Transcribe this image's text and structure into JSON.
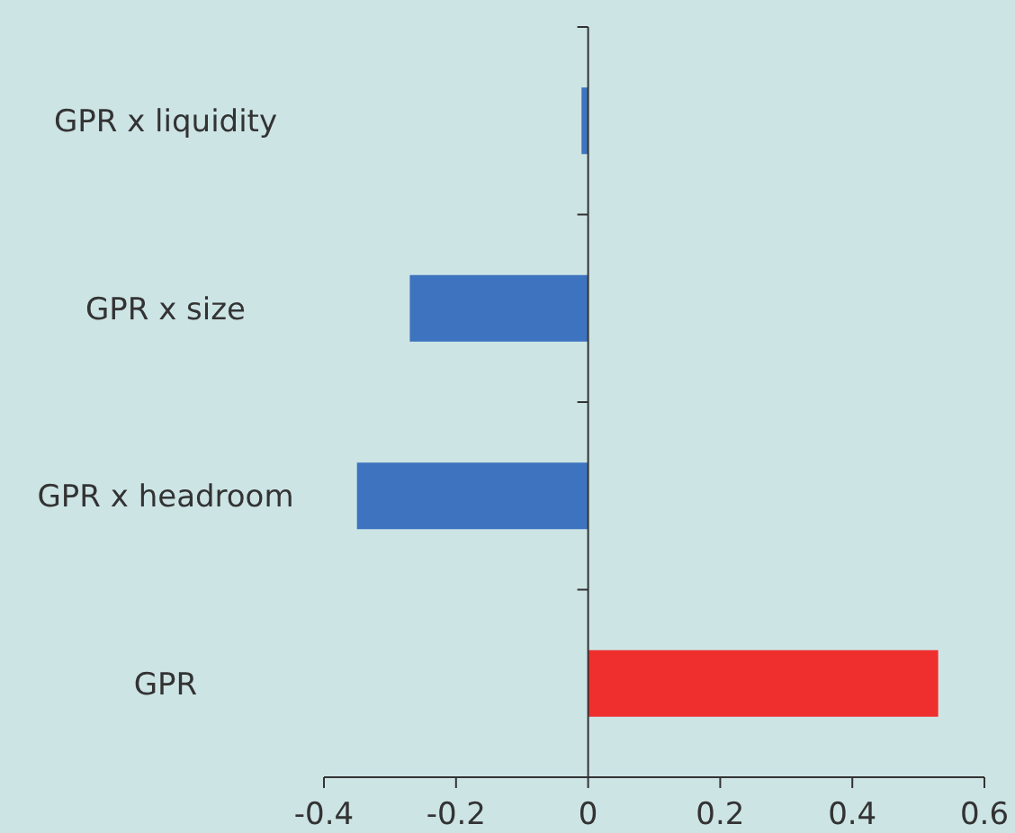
{
  "chart_data": {
    "type": "bar",
    "orientation": "horizontal",
    "categories": [
      "GPR x liquidity",
      "GPR x size",
      "GPR x headroom",
      "GPR"
    ],
    "values": [
      -0.01,
      -0.27,
      -0.35,
      0.53
    ],
    "colors": [
      "#3e73bf",
      "#3e73bf",
      "#3e73bf",
      "#ee2f2e"
    ],
    "xlim": [
      -0.4,
      0.6
    ],
    "xticks": [
      -0.4,
      -0.2,
      0,
      0.2,
      0.4,
      0.6
    ]
  }
}
